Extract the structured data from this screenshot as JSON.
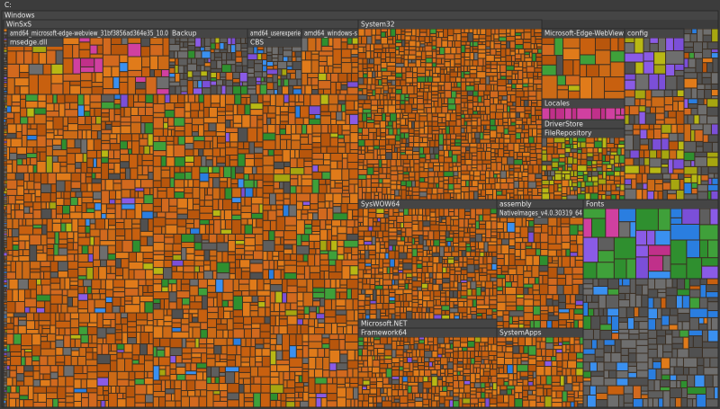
{
  "drive": "C:",
  "nodes": [
    {
      "label": "Windows"
    },
    {
      "label": "WinSxS"
    },
    {
      "label": "amd64_microsoft-edge-webview_31bf3856ad364e35_10.0"
    },
    {
      "label": "msedge.dll"
    },
    {
      "label": "Backup"
    },
    {
      "label": "amd64_userexperie"
    },
    {
      "label": "CBS"
    },
    {
      "label": "amd64_windows-s"
    },
    {
      "label": "System32"
    },
    {
      "label": "Microsoft-Edge-WebView"
    },
    {
      "label": "config"
    },
    {
      "label": "Locales"
    },
    {
      "label": "DriverStore"
    },
    {
      "label": "FileRepository"
    },
    {
      "label": "SysWOW64"
    },
    {
      "label": "assembly"
    },
    {
      "label": "NativeImages_v4.0.30319_64"
    },
    {
      "label": "Fonts"
    },
    {
      "label": "Microsoft.NET"
    },
    {
      "label": "Framework64"
    },
    {
      "label": "SystemApps"
    }
  ]
}
